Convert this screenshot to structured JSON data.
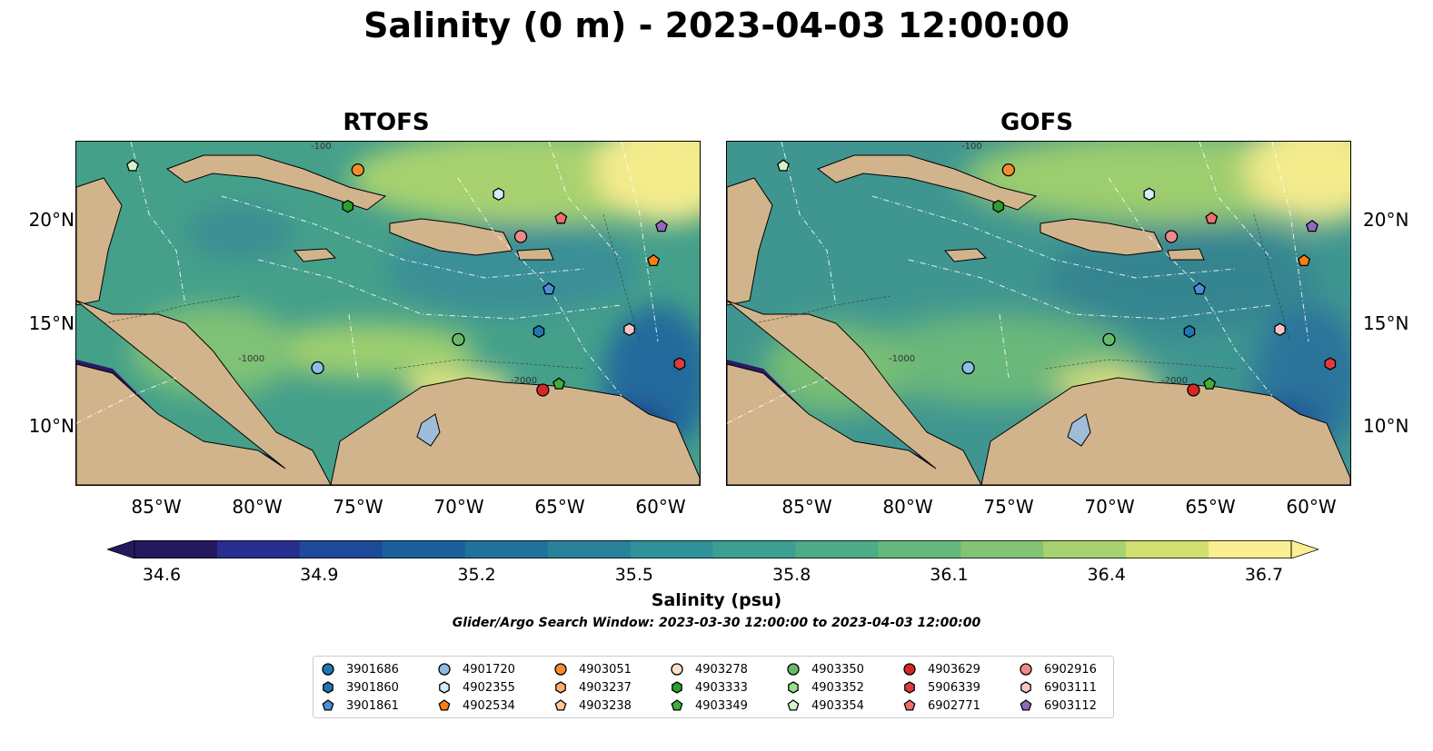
{
  "title": "Salinity (0 m) - 2023-04-03 12:00:00",
  "panels": [
    {
      "title": "RTOFS"
    },
    {
      "title": "GOFS"
    }
  ],
  "lon_ticks": [
    "85°W",
    "80°W",
    "75°W",
    "70°W",
    "65°W",
    "60°W"
  ],
  "lat_ticks": [
    "20°N",
    "15°N",
    "10°N"
  ],
  "contour_labels": [
    "-100",
    "-1000",
    "-2000"
  ],
  "colorbar": {
    "ticks": [
      "34.6",
      "34.9",
      "35.2",
      "35.5",
      "35.8",
      "36.1",
      "36.4",
      "36.7"
    ],
    "label": "Salinity (psu)",
    "colors": [
      "#26185f",
      "#282e8f",
      "#1f4a9c",
      "#1b609d",
      "#1f729c",
      "#27829a",
      "#2f9199",
      "#3b9f92",
      "#4dab85",
      "#64b87c",
      "#83c474",
      "#a8d26f",
      "#d0df6e",
      "#fbee93"
    ],
    "extend": "both"
  },
  "search_window": "Glider/Argo Search Window: 2023-03-30 12:00:00 to 2023-04-03 12:00:00",
  "legend": {
    "columns": [
      [
        {
          "id": "3901686",
          "marker": "circle",
          "color": "#1f77b4"
        },
        {
          "id": "3901860",
          "marker": "hexagon",
          "color": "#1f77b4"
        },
        {
          "id": "3901861",
          "marker": "pentagon",
          "color": "#4a90d9"
        }
      ],
      [
        {
          "id": "4901720",
          "marker": "circle",
          "color": "#8fbce6"
        },
        {
          "id": "4902355",
          "marker": "hexagon",
          "color": "#d6ecfa"
        },
        {
          "id": "4902534",
          "marker": "pentagon",
          "color": "#ff7f0e"
        }
      ],
      [
        {
          "id": "4903051",
          "marker": "circle",
          "color": "#f28e2b"
        },
        {
          "id": "4903237",
          "marker": "hexagon",
          "color": "#ffad6b"
        },
        {
          "id": "4903238",
          "marker": "pentagon",
          "color": "#ffc89a"
        }
      ],
      [
        {
          "id": "4903278",
          "marker": "circle",
          "color": "#fde0c5"
        },
        {
          "id": "4903333",
          "marker": "hexagon",
          "color": "#2ca02c"
        },
        {
          "id": "4903349",
          "marker": "pentagon",
          "color": "#3fae3a"
        }
      ],
      [
        {
          "id": "4903350",
          "marker": "circle",
          "color": "#66bb6a"
        },
        {
          "id": "4903352",
          "marker": "hexagon",
          "color": "#98df8a"
        },
        {
          "id": "4903354",
          "marker": "pentagon",
          "color": "#d4f5cc"
        }
      ],
      [
        {
          "id": "4903629",
          "marker": "circle",
          "color": "#d62728"
        },
        {
          "id": "5906339",
          "marker": "hexagon",
          "color": "#e03b3b"
        },
        {
          "id": "6902771",
          "marker": "pentagon",
          "color": "#ef6f6c"
        }
      ],
      [
        {
          "id": "6902916",
          "marker": "circle",
          "color": "#f08a8a"
        },
        {
          "id": "6903111",
          "marker": "hexagon",
          "color": "#fbc4c4"
        },
        {
          "id": "6903112",
          "marker": "pentagon",
          "color": "#9467bd"
        }
      ]
    ]
  },
  "floats": [
    {
      "id": "4903354",
      "lon": -86.2,
      "lat": 22.8
    },
    {
      "id": "4903051",
      "lon": -75.0,
      "lat": 22.6
    },
    {
      "id": "4903333",
      "lon": -75.5,
      "lat": 20.8
    },
    {
      "id": "4902355",
      "lon": -68.0,
      "lat": 21.4
    },
    {
      "id": "6902916",
      "lon": -66.9,
      "lat": 19.3
    },
    {
      "id": "6902771",
      "lon": -64.9,
      "lat": 20.2
    },
    {
      "id": "6903112",
      "lon": -59.9,
      "lat": 19.8
    },
    {
      "id": "4902534",
      "lon": -60.3,
      "lat": 18.1
    },
    {
      "id": "3901861",
      "lon": -65.5,
      "lat": 16.7
    },
    {
      "id": "4903350",
      "lon": -70.0,
      "lat": 14.2
    },
    {
      "id": "3901860",
      "lon": -66.0,
      "lat": 14.6
    },
    {
      "id": "6903111",
      "lon": -61.5,
      "lat": 14.7
    },
    {
      "id": "5906339",
      "lon": -59.0,
      "lat": 13.0
    },
    {
      "id": "4901720",
      "lon": -77.0,
      "lat": 12.8
    },
    {
      "id": "4903349",
      "lon": -65.0,
      "lat": 12.0
    },
    {
      "id": "4903629",
      "lon": -65.8,
      "lat": 11.7
    }
  ]
}
